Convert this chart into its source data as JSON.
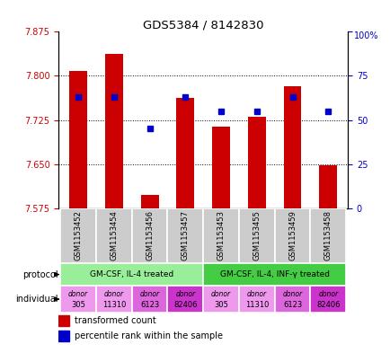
{
  "title": "GDS5384 / 8142830",
  "samples": [
    "GSM1153452",
    "GSM1153454",
    "GSM1153456",
    "GSM1153457",
    "GSM1153453",
    "GSM1153455",
    "GSM1153459",
    "GSM1153458"
  ],
  "transformed_counts": [
    7.808,
    7.838,
    7.598,
    7.762,
    7.714,
    7.73,
    7.782,
    7.648
  ],
  "percentile_ranks": [
    63,
    63,
    45,
    63,
    55,
    55,
    63,
    55
  ],
  "ymin": 7.575,
  "ymax": 7.875,
  "yticks": [
    7.575,
    7.65,
    7.725,
    7.8,
    7.875
  ],
  "y2ticks": [
    0,
    25,
    50,
    75,
    100
  ],
  "bar_color": "#cc0000",
  "dot_color": "#0000cc",
  "protocol_groups": [
    {
      "label": "GM-CSF, IL-4 treated",
      "start": 0,
      "end": 3,
      "color": "#99ee99"
    },
    {
      "label": "GM-CSF, IL-4, INF-γ treated",
      "start": 4,
      "end": 7,
      "color": "#44cc44"
    }
  ],
  "donor_colors": [
    "#ee99ee",
    "#ee99ee",
    "#dd66dd",
    "#cc33cc",
    "#ee99ee",
    "#ee99ee",
    "#dd66dd",
    "#cc33cc"
  ],
  "donor_tops": [
    "donor",
    "donor",
    "donor",
    "donor",
    "donor",
    "donor",
    "donor",
    "donor"
  ],
  "donor_bottoms": [
    "305",
    "11310",
    "6123",
    "82406",
    "305",
    "11310",
    "6123",
    "82406"
  ],
  "sample_bg_color": "#cccccc",
  "left_label_color": "#cc0000",
  "right_label_color": "#0000cc",
  "grid_yticks": [
    7.8,
    7.725,
    7.65
  ],
  "figsize": [
    4.35,
    3.93
  ],
  "dpi": 100
}
